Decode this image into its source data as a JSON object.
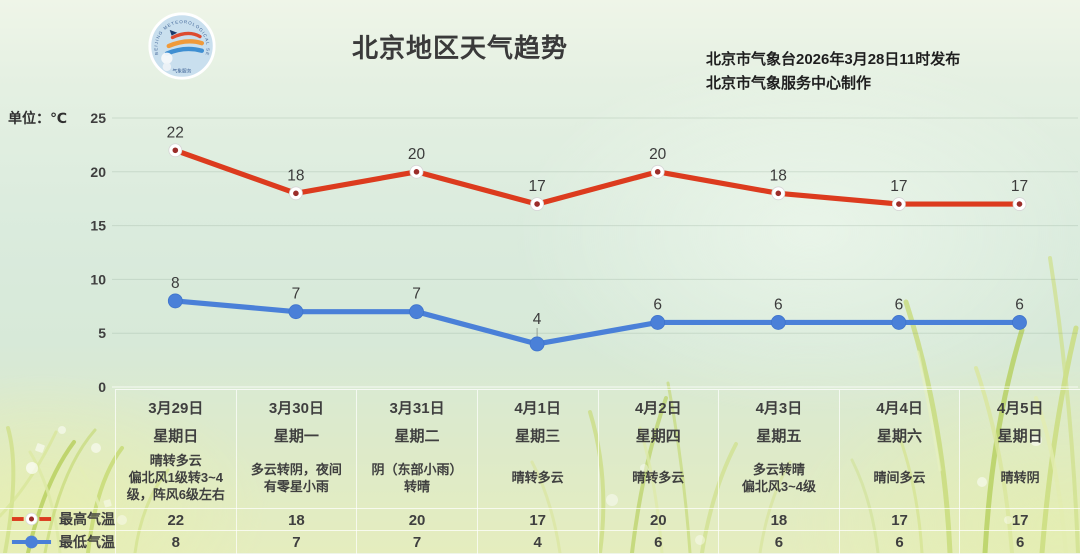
{
  "header": {
    "title": "北京地区天气趋势",
    "issued_line1": "北京市气象台2026年3月28日11时发布",
    "issued_line2": "北京市气象服务中心制作"
  },
  "unit_label": "单位：℃",
  "logo": {
    "name": "北京市气象服务中心标志",
    "arc_text": "BEIJING METEOROLOGICAL SERVICE"
  },
  "chart_data": {
    "type": "line",
    "categories": [
      "3月29日",
      "3月30日",
      "3月31日",
      "4月1日",
      "4月2日",
      "4月3日",
      "4月4日",
      "4月5日"
    ],
    "series": [
      {
        "name": "最高气温",
        "color": "#dc3b1e",
        "marker": "white-ring-red-dot",
        "values": [
          22,
          18,
          20,
          17,
          20,
          18,
          17,
          17
        ]
      },
      {
        "name": "最低气温",
        "color": "#4a80d8",
        "marker": "solid-blue-dot",
        "values": [
          8,
          7,
          7,
          4,
          6,
          6,
          6,
          6
        ]
      }
    ],
    "ylim": [
      0,
      25
    ],
    "yticks": [
      0,
      5,
      10,
      15,
      20,
      25
    ],
    "grid": true,
    "legend_position": "bottom-left"
  },
  "table": {
    "row_labels": {
      "high": "最高气温",
      "low": "最低气温"
    },
    "days": [
      {
        "date": "3月29日",
        "weekday": "星期日",
        "weather": "晴转多云\n偏北风1级转3~4级，阵风6级左右",
        "high": "22",
        "low": "8"
      },
      {
        "date": "3月30日",
        "weekday": "星期一",
        "weather": "多云转阴，夜间\n有零星小雨",
        "high": "18",
        "low": "7"
      },
      {
        "date": "3月31日",
        "weekday": "星期二",
        "weather": "阴（东部小雨）\n转晴",
        "high": "20",
        "low": "7"
      },
      {
        "date": "4月1日",
        "weekday": "星期三",
        "weather": "晴转多云",
        "high": "17",
        "low": "4"
      },
      {
        "date": "4月2日",
        "weekday": "星期四",
        "weather": "晴转多云",
        "high": "20",
        "low": "6"
      },
      {
        "date": "4月3日",
        "weekday": "星期五",
        "weather": "多云转晴\n偏北风3~4级",
        "high": "18",
        "low": "6"
      },
      {
        "date": "4月4日",
        "weekday": "星期六",
        "weather": "晴间多云",
        "high": "17",
        "low": "6"
      },
      {
        "date": "4月5日",
        "weekday": "星期日",
        "weather": "晴转阴",
        "high": "17",
        "low": "6"
      }
    ]
  }
}
